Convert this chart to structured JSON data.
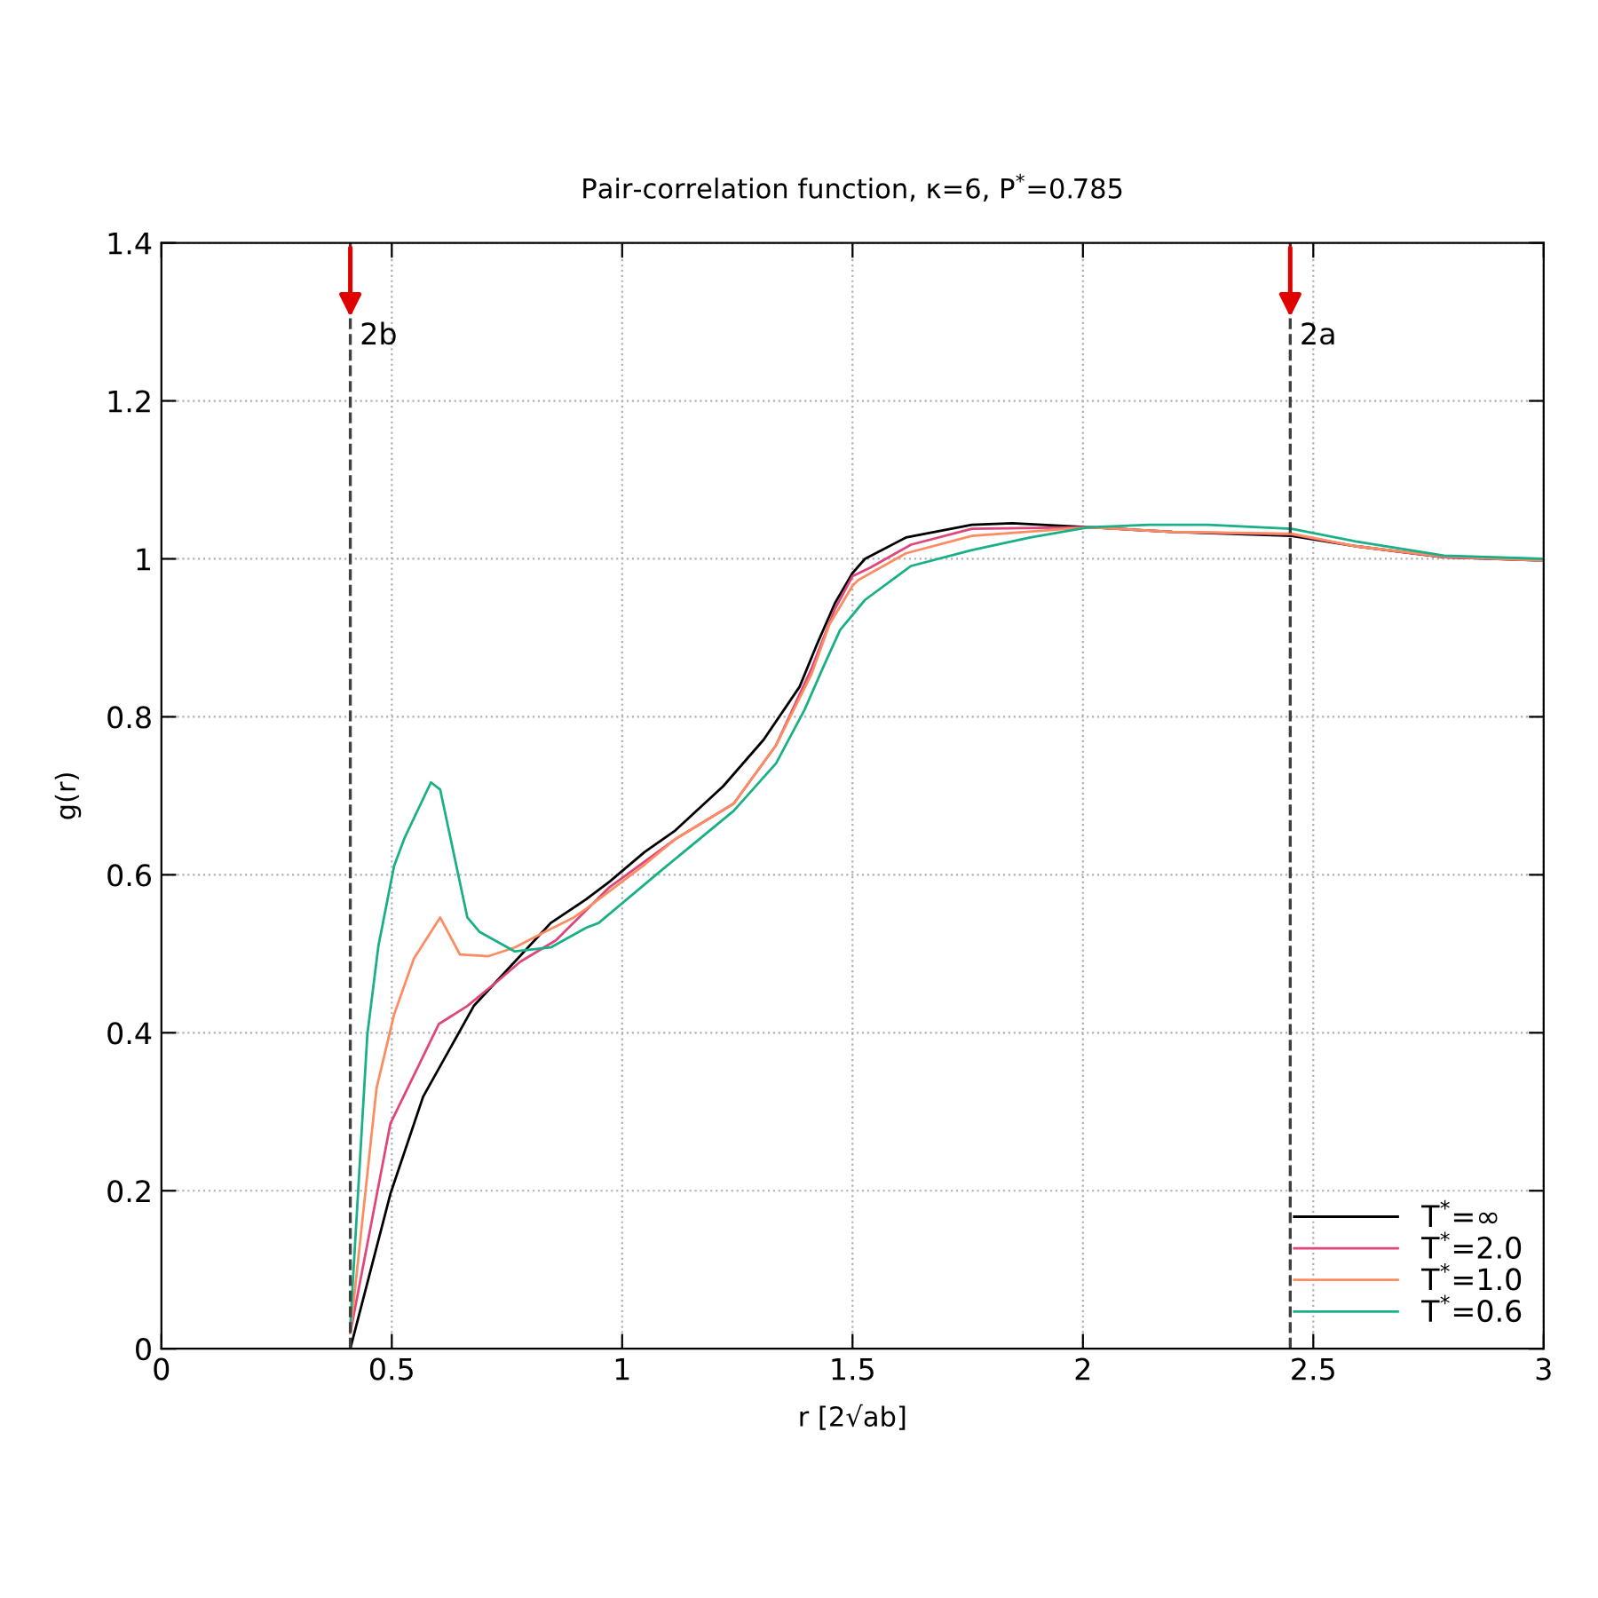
{
  "chart_data": {
    "type": "line",
    "title": "Pair-correlation function, κ=6, P$^{*}$=0.785",
    "xlabel": "r [2√ab]",
    "ylabel": "g(r)",
    "xlim": [
      0,
      3
    ],
    "ylim": [
      0,
      1.4
    ],
    "xticks": [
      0,
      0.5,
      1,
      1.5,
      2,
      2.5,
      3
    ],
    "yticks": [
      0,
      0.2,
      0.4,
      0.6,
      0.8,
      1,
      1.2,
      1.4
    ],
    "grid": true,
    "legend": "bottom right",
    "marker": "none",
    "line_style": "solid",
    "series": [
      {
        "name": "T$^{*}$=∞",
        "color": "#000000",
        "x": [
          0.41,
          0.497,
          0.568,
          0.678,
          0.767,
          0.845,
          0.922,
          0.972,
          1.049,
          1.115,
          1.219,
          1.307,
          1.385,
          1.423,
          1.462,
          1.5,
          1.527,
          1.616,
          1.759,
          1.847,
          2.013,
          2.194,
          2.453,
          2.592,
          2.784,
          3.0
        ],
        "values": [
          0.0,
          0.196,
          0.319,
          0.434,
          0.49,
          0.539,
          0.569,
          0.591,
          0.629,
          0.656,
          0.712,
          0.771,
          0.838,
          0.892,
          0.944,
          0.982,
          1.0,
          1.027,
          1.043,
          1.045,
          1.04,
          1.034,
          1.029,
          1.016,
          1.002,
          0.998
        ]
      },
      {
        "name": "T$^{*}$=2.0",
        "color": "#e0467c",
        "x": [
          0.41,
          0.497,
          0.602,
          0.664,
          0.729,
          0.779,
          0.856,
          0.972,
          1.115,
          1.242,
          1.334,
          1.411,
          1.462,
          1.5,
          1.539,
          1.627,
          1.759,
          2.013,
          2.194,
          2.453,
          2.592,
          2.784,
          3.0
        ],
        "values": [
          0.02,
          0.285,
          0.411,
          0.434,
          0.465,
          0.49,
          0.517,
          0.584,
          0.645,
          0.69,
          0.764,
          0.861,
          0.937,
          0.978,
          0.989,
          1.018,
          1.038,
          1.04,
          1.034,
          1.031,
          1.016,
          1.002,
          0.998
        ]
      },
      {
        "name": "T$^{*}$=1.0",
        "color": "#fc8d62",
        "x": [
          0.41,
          0.467,
          0.505,
          0.548,
          0.605,
          0.648,
          0.71,
          0.767,
          0.833,
          0.895,
          0.922,
          1.049,
          1.115,
          1.242,
          1.334,
          1.411,
          1.45,
          1.5,
          1.512,
          1.616,
          1.759,
          2.013,
          2.194,
          2.453,
          2.592,
          2.784,
          3.0
        ],
        "values": [
          0.02,
          0.33,
          0.423,
          0.494,
          0.546,
          0.499,
          0.497,
          0.508,
          0.528,
          0.546,
          0.557,
          0.613,
          0.645,
          0.69,
          0.764,
          0.854,
          0.917,
          0.966,
          0.973,
          1.007,
          1.029,
          1.04,
          1.034,
          1.032,
          1.016,
          1.003,
          0.998
        ]
      },
      {
        "name": "T$^{*}$=0.6",
        "color": "#1ab087",
        "x": [
          0.41,
          0.447,
          0.471,
          0.505,
          0.528,
          0.585,
          0.605,
          0.664,
          0.69,
          0.767,
          0.845,
          0.922,
          0.949,
          1.088,
          1.242,
          1.334,
          1.396,
          1.435,
          1.473,
          1.527,
          1.627,
          1.759,
          1.886,
          2.013,
          2.144,
          2.271,
          2.453,
          2.592,
          2.784,
          3.0
        ],
        "values": [
          0.03,
          0.398,
          0.51,
          0.611,
          0.647,
          0.717,
          0.708,
          0.546,
          0.528,
          0.503,
          0.508,
          0.533,
          0.539,
          0.607,
          0.681,
          0.741,
          0.809,
          0.861,
          0.91,
          0.948,
          0.991,
          1.011,
          1.027,
          1.04,
          1.043,
          1.043,
          1.038,
          1.022,
          1.004,
          1.0
        ]
      }
    ],
    "ref_lines": [
      {
        "axis": "x",
        "value": 0.41,
        "color": "#404040",
        "line_style": "dashed"
      },
      {
        "axis": "x",
        "value": 2.45,
        "color": "#404040",
        "line_style": "dashed"
      }
    ],
    "annotations": [
      {
        "text": "2b",
        "x": 0.41,
        "y": 1.3
      },
      {
        "text": "2a",
        "x": 2.45,
        "y": 1.3
      }
    ]
  }
}
